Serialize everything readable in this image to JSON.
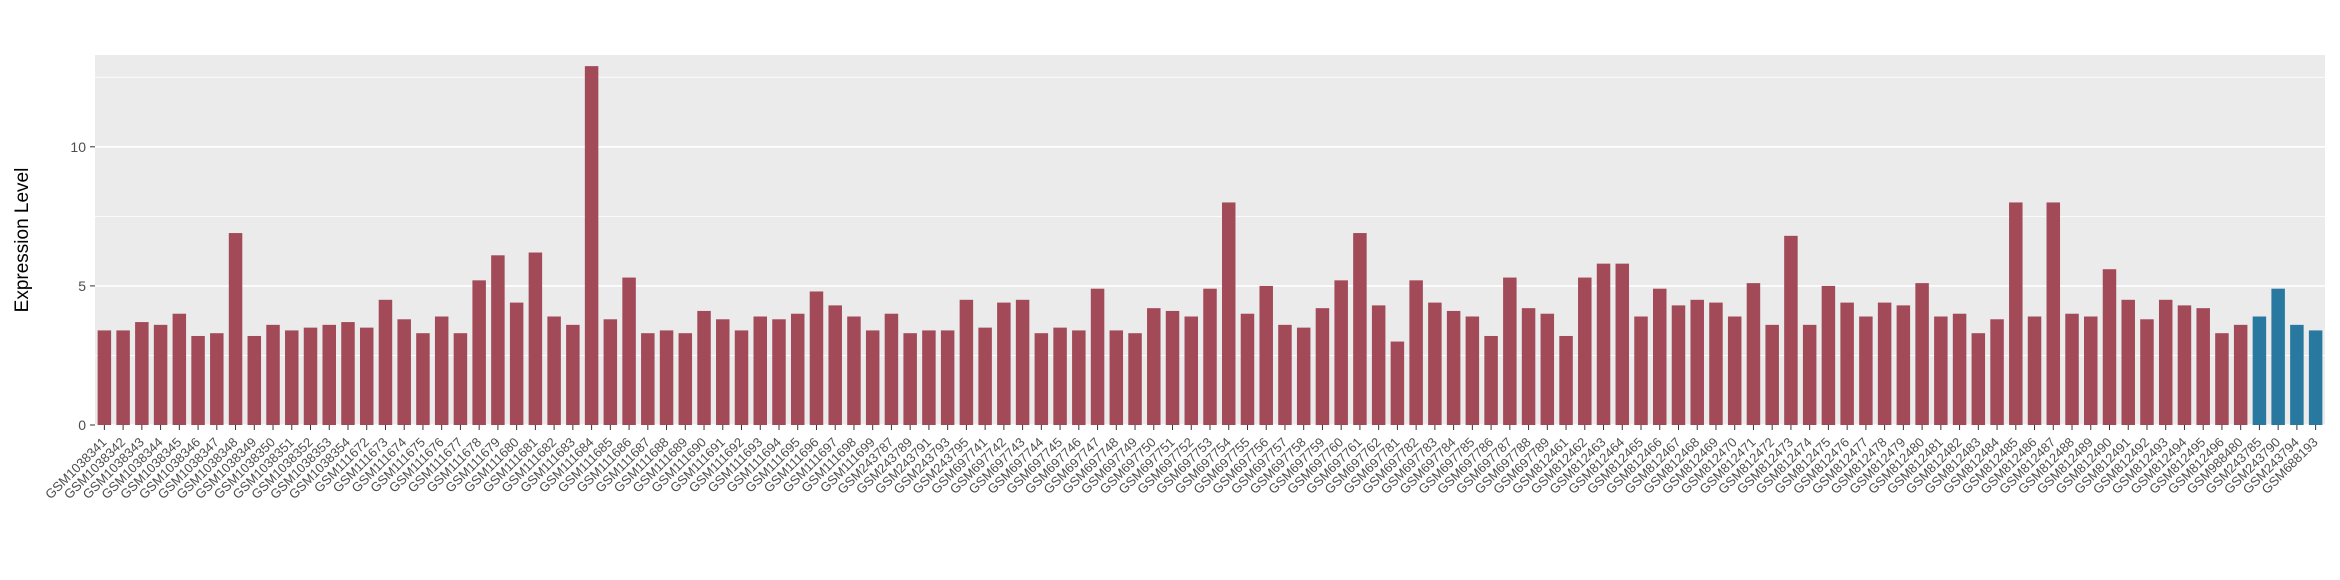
{
  "chart_data": {
    "type": "bar",
    "title": "",
    "xlabel": "",
    "ylabel": "Expression Level",
    "ylim": [
      0,
      13.3
    ],
    "yticks": [
      0,
      5,
      10
    ],
    "grid": "on",
    "legend": "none",
    "panel_background": "#ebebeb",
    "grid_color": "#ffffff",
    "tick_color": "#333333",
    "bar_color_default": "#a34a58",
    "bar_color_highlight": "#2878a0",
    "highlight_indices": [
      115,
      116,
      117,
      118
    ],
    "categories": [
      "GSM1038341",
      "GSM1038342",
      "GSM1038343",
      "GSM1038344",
      "GSM1038345",
      "GSM1038346",
      "GSM1038347",
      "GSM1038348",
      "GSM1038349",
      "GSM1038350",
      "GSM1038351",
      "GSM1038352",
      "GSM1038353",
      "GSM1038354",
      "GSM111672",
      "GSM111673",
      "GSM111674",
      "GSM111675",
      "GSM111676",
      "GSM111677",
      "GSM111678",
      "GSM111679",
      "GSM111680",
      "GSM111681",
      "GSM111682",
      "GSM111683",
      "GSM111684",
      "GSM111685",
      "GSM111686",
      "GSM111687",
      "GSM111688",
      "GSM111689",
      "GSM111690",
      "GSM111691",
      "GSM111692",
      "GSM111693",
      "GSM111694",
      "GSM111695",
      "GSM111696",
      "GSM111697",
      "GSM111698",
      "GSM111699",
      "GSM243787",
      "GSM243789",
      "GSM243791",
      "GSM243793",
      "GSM243795",
      "GSM697741",
      "GSM697742",
      "GSM697743",
      "GSM697744",
      "GSM697745",
      "GSM697746",
      "GSM697747",
      "GSM697748",
      "GSM697749",
      "GSM697750",
      "GSM697751",
      "GSM697752",
      "GSM697753",
      "GSM697754",
      "GSM697755",
      "GSM697756",
      "GSM697757",
      "GSM697758",
      "GSM697759",
      "GSM697760",
      "GSM697761",
      "GSM697762",
      "GSM697781",
      "GSM697782",
      "GSM697783",
      "GSM697784",
      "GSM697785",
      "GSM697786",
      "GSM697787",
      "GSM697788",
      "GSM697789",
      "GSM812461",
      "GSM812462",
      "GSM812463",
      "GSM812464",
      "GSM812465",
      "GSM812466",
      "GSM812467",
      "GSM812468",
      "GSM812469",
      "GSM812470",
      "GSM812471",
      "GSM812472",
      "GSM812473",
      "GSM812474",
      "GSM812475",
      "GSM812476",
      "GSM812477",
      "GSM812478",
      "GSM812479",
      "GSM812480",
      "GSM812481",
      "GSM812482",
      "GSM812483",
      "GSM812484",
      "GSM812485",
      "GSM812486",
      "GSM812487",
      "GSM812488",
      "GSM812489",
      "GSM812490",
      "GSM812491",
      "GSM812492",
      "GSM812493",
      "GSM812494",
      "GSM812495",
      "GSM812496",
      "GSM988480",
      "GSM243785",
      "GSM243790",
      "GSM243794",
      "GSM688193"
    ],
    "values": [
      3.4,
      3.4,
      3.7,
      3.6,
      4.0,
      3.2,
      3.3,
      6.9,
      3.2,
      3.6,
      3.4,
      3.5,
      3.6,
      3.7,
      3.5,
      4.5,
      3.8,
      3.3,
      3.9,
      3.3,
      5.2,
      6.1,
      4.4,
      6.2,
      3.9,
      3.6,
      12.9,
      3.8,
      5.3,
      3.3,
      3.4,
      3.3,
      4.1,
      3.8,
      3.4,
      3.9,
      3.8,
      4.0,
      4.8,
      4.3,
      3.9,
      3.4,
      4.0,
      3.3,
      3.4,
      3.4,
      4.5,
      3.5,
      4.4,
      4.5,
      3.3,
      3.5,
      3.4,
      4.9,
      3.4,
      3.3,
      4.2,
      4.1,
      3.9,
      4.9,
      8.0,
      4.0,
      5.0,
      3.6,
      3.5,
      4.2,
      5.2,
      6.9,
      4.3,
      3.0,
      5.2,
      4.4,
      4.1,
      3.9,
      3.2,
      5.3,
      4.2,
      4.0,
      3.2,
      5.3,
      5.8,
      5.8,
      3.9,
      4.9,
      4.3,
      4.5,
      4.4,
      3.9,
      5.1,
      3.6,
      6.8,
      3.6,
      5.0,
      4.4,
      3.9,
      4.4,
      4.3,
      5.1,
      3.9,
      4.0,
      3.3,
      3.8,
      8.0,
      3.9,
      8.0,
      4.0,
      3.9,
      5.6,
      4.5,
      3.8,
      4.5,
      4.3,
      4.2,
      3.3,
      3.6,
      3.9,
      4.9,
      3.6,
      3.4
    ]
  }
}
